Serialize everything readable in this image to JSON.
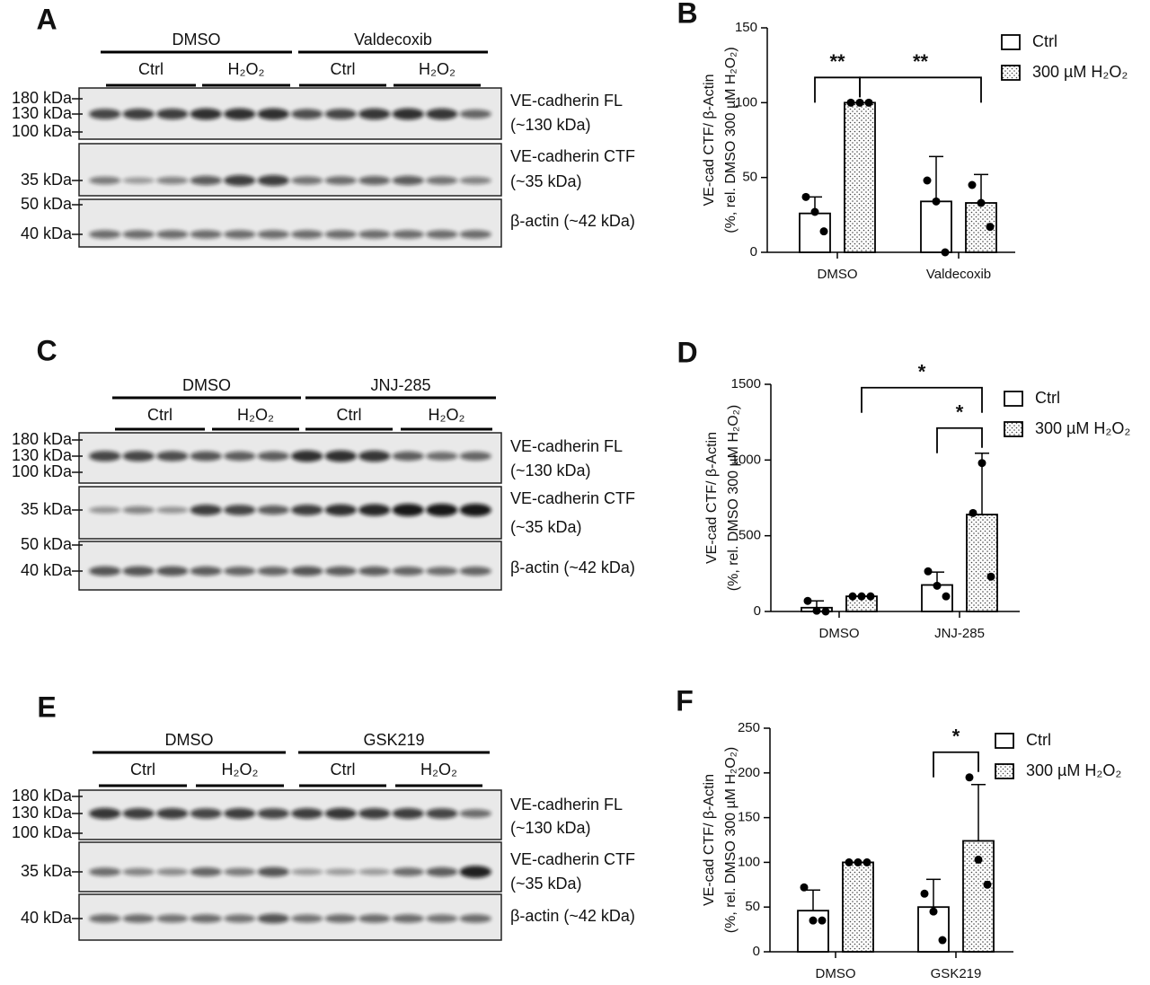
{
  "blots": [
    {
      "panel": "A",
      "groups": [
        {
          "label": "DMSO",
          "conditions": [
            "Ctrl",
            "H₂O₂"
          ]
        },
        {
          "label": "Valdecoxib",
          "conditions": [
            "Ctrl",
            "H₂O₂"
          ]
        }
      ],
      "markers": [
        "180 kDa",
        "130 kDa",
        "100 kDa",
        "35 kDa",
        "50 kDa",
        "40 kDa"
      ],
      "bands": [
        "VE-cadherin FL",
        "(~130 kDa)",
        "VE-cadherin CTF",
        "(~35 kDa)",
        "β-actin (~42 kDa)"
      ]
    },
    {
      "panel": "C",
      "groups": [
        {
          "label": "DMSO",
          "conditions": [
            "Ctrl",
            "H₂O₂"
          ]
        },
        {
          "label": "JNJ-285",
          "conditions": [
            "Ctrl",
            "H₂O₂"
          ]
        }
      ],
      "markers": [
        "180 kDa",
        "130 kDa",
        "100 kDa",
        "35 kDa",
        "50 kDa",
        "40 kDa"
      ],
      "bands": [
        "VE-cadherin FL",
        "(~130 kDa)",
        "VE-cadherin CTF",
        "(~35 kDa)",
        "β-actin (~42 kDa)"
      ]
    },
    {
      "panel": "E",
      "groups": [
        {
          "label": "DMSO",
          "conditions": [
            "Ctrl",
            "H₂O₂"
          ]
        },
        {
          "label": "GSK219",
          "conditions": [
            "Ctrl",
            "H₂O₂"
          ]
        }
      ],
      "markers": [
        "180 kDa",
        "130 kDa",
        "100 kDa",
        "35 kDa",
        "40 kDa"
      ],
      "bands": [
        "VE-cadherin FL",
        "(~130 kDa)",
        "VE-cadherin CTF",
        "(~35 kDa)",
        "β-actin (~42 kDa)"
      ]
    }
  ],
  "chart_data": [
    {
      "type": "bar",
      "panel": "B",
      "y_label": [
        "VE-cad CTF/ β-Actin",
        "(%, rel. DMSO 300 µM H₂O₂)"
      ],
      "categories": [
        "DMSO",
        "Valdecoxib"
      ],
      "series": [
        {
          "name": "Ctrl",
          "color": "#ffffff",
          "pattern": "none",
          "values": [
            26,
            34
          ],
          "errors": [
            11,
            30
          ],
          "points": [
            [
              37,
              27,
              14
            ],
            [
              48,
              34,
              0
            ]
          ]
        },
        {
          "name": "300 µM H₂O₂",
          "color": "#ffffff",
          "pattern": "dots",
          "values": [
            100,
            33
          ],
          "errors": [
            0,
            19
          ],
          "points": [
            [
              100,
              100,
              100
            ],
            [
              45,
              33,
              17
            ]
          ]
        }
      ],
      "ylim": [
        0,
        150
      ],
      "yticks": [
        0,
        50,
        100,
        150
      ],
      "annotations": [
        {
          "text": "**",
          "series": [
            0,
            1
          ],
          "categories": [
            0,
            0
          ]
        },
        {
          "text": "**",
          "series": [
            1,
            1
          ],
          "categories": [
            0,
            1
          ]
        }
      ]
    },
    {
      "type": "bar",
      "panel": "D",
      "y_label": [
        "VE-cad CTF/ β-Actin",
        "(%, rel. DMSO 300 µM H₂O₂)"
      ],
      "categories": [
        "DMSO",
        "JNJ-285"
      ],
      "series": [
        {
          "name": "Ctrl",
          "color": "#ffffff",
          "pattern": "none",
          "values": [
            25,
            175
          ],
          "errors": [
            45,
            85
          ],
          "points": [
            [
              70,
              5,
              0
            ],
            [
              265,
              170,
              100
            ]
          ]
        },
        {
          "name": "300 µM H₂O₂",
          "color": "#ffffff",
          "pattern": "dots",
          "values": [
            100,
            640
          ],
          "errors": [
            0,
            405
          ],
          "points": [
            [
              100,
              100,
              100
            ],
            [
              650,
              980,
              230
            ]
          ]
        }
      ],
      "ylim": [
        0,
        1500
      ],
      "yticks": [
        0,
        500,
        1000,
        1500
      ],
      "annotations": [
        {
          "text": "*",
          "series": [
            1,
            1
          ],
          "categories": [
            0,
            1
          ]
        },
        {
          "text": "*",
          "series": [
            0,
            1
          ],
          "categories": [
            1,
            1
          ]
        }
      ]
    },
    {
      "type": "bar",
      "panel": "F",
      "y_label": [
        "VE-cad CTF/ β-Actin",
        "(%, rel. DMSO 300 µM H₂O₂)"
      ],
      "categories": [
        "DMSO",
        "GSK219"
      ],
      "series": [
        {
          "name": "Ctrl",
          "color": "#ffffff",
          "pattern": "none",
          "values": [
            46,
            50
          ],
          "errors": [
            23,
            31
          ],
          "points": [
            [
              72,
              35,
              35
            ],
            [
              65,
              45,
              13
            ]
          ]
        },
        {
          "name": "300 µM H₂O₂",
          "color": "#ffffff",
          "pattern": "dots",
          "values": [
            100,
            124
          ],
          "errors": [
            0,
            63
          ],
          "points": [
            [
              100,
              100,
              100
            ],
            [
              195,
              103,
              75
            ]
          ]
        }
      ],
      "ylim": [
        0,
        250
      ],
      "yticks": [
        0,
        50,
        100,
        150,
        200,
        250
      ],
      "annotations": [
        {
          "text": "*",
          "series": [
            0,
            1
          ],
          "categories": [
            1,
            1
          ]
        }
      ]
    }
  ]
}
